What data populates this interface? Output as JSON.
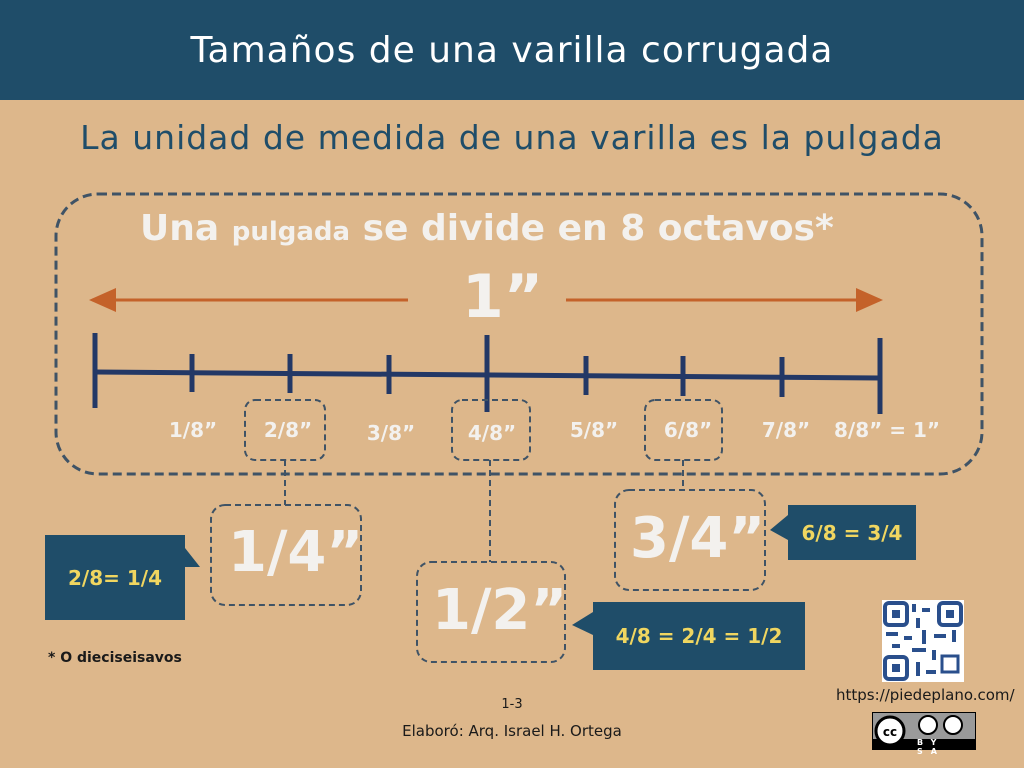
{
  "header": {
    "title": "Tamaños de una varilla corrugada"
  },
  "subtitle": "La unidad de medida de una varilla es la pulgada",
  "box": {
    "heading_part1": "Una",
    "heading_part2": "pulgada",
    "heading_part3": "se divide en 8 octavos*",
    "inch_label": "1”"
  },
  "ruler": {
    "labels": [
      "1/8”",
      "2/8”",
      "3/8”",
      "4/8”",
      "5/8”",
      "6/8”",
      "7/8”",
      "8/8” = 1”"
    ]
  },
  "fractions": {
    "quarter": "1/4”",
    "half": "1/2”",
    "three_quarters": "3/4”"
  },
  "callouts": {
    "quarter": "2/8= 1/4",
    "half": "4/8 = 2/4 = 1/2",
    "three_quarters": "6/8 = 3/4"
  },
  "note": "* O dieciseisavos",
  "footer": {
    "page": "1-3",
    "author": "Elaboró: Arq. Israel H. Ortega",
    "url": "https://piedeplano.com/",
    "license": "BY SA"
  },
  "colors": {
    "header": "#1f4d69",
    "background": "#ddb78b",
    "ruler": "#233866",
    "arrow": "#c4622a",
    "callout_text": "#f0d660"
  }
}
